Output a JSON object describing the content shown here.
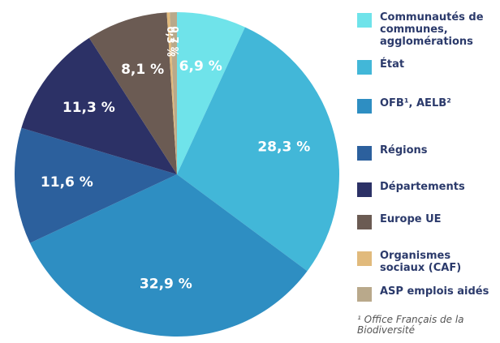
{
  "chart_data": {
    "type": "pie",
    "categories": [
      "Communautés de communes, agglomérations",
      "État",
      "OFB¹, AELB²",
      "Régions",
      "Départements",
      "Europe UE",
      "Organismes sociaux (CAF)",
      "ASP emplois aidés"
    ],
    "values": [
      6.9,
      28.3,
      32.9,
      11.6,
      11.3,
      8.1,
      0.3,
      0.7
    ],
    "value_labels": [
      "6,9 %",
      "28,3 %",
      "32,9 %",
      "11,6 %",
      "11,3 %",
      "8,1 %",
      "0,3 %",
      "0,7 %"
    ],
    "colors": [
      "#6fe3ea",
      "#42b7d8",
      "#2e8ec2",
      "#2c609d",
      "#2c3166",
      "#6b5b53",
      "#e1ba7c",
      "#b9a98b"
    ],
    "annotation": "¹ Office Français de la Biodiversité"
  }
}
